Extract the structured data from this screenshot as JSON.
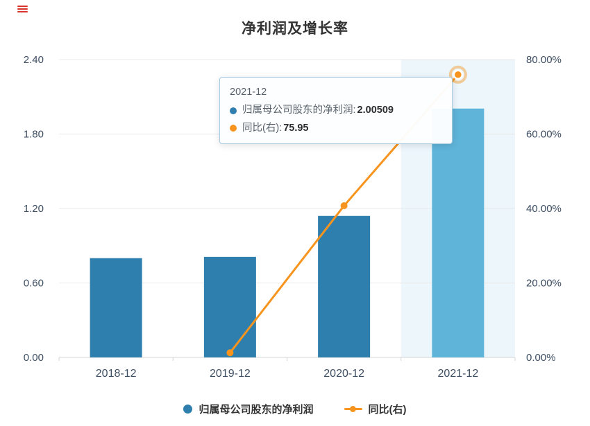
{
  "title": "净利润及增长率",
  "menu_icon_color": "#d9342b",
  "chart_data": {
    "type": "bar+line combo",
    "title": "净利润及增长率",
    "categories": [
      "2018-12",
      "2019-12",
      "2020-12",
      "2021-12"
    ],
    "series": [
      {
        "name": "归属母公司股东的净利润",
        "type": "bar",
        "axis": "left",
        "values": [
          0.8,
          0.81,
          1.14,
          2.00509
        ]
      },
      {
        "name": "同比(右)",
        "type": "line",
        "axis": "right",
        "values": [
          null,
          1.25,
          40.74,
          75.95
        ]
      }
    ],
    "left_axis": {
      "ticks": [
        "0.00",
        "0.60",
        "1.20",
        "1.80",
        "2.40"
      ],
      "min": 0,
      "max": 2.4
    },
    "right_axis": {
      "ticks": [
        "0.00%",
        "20.00%",
        "40.00%",
        "60.00%",
        "80.00%"
      ],
      "min": 0,
      "max": 80
    },
    "highlight_index": 3,
    "grid": true,
    "legend_position": "bottom",
    "colors": {
      "bar": "#2f7fae",
      "bar_highlight": "#5fb4d9",
      "band": "#ecf6fb",
      "line": "#f7941e",
      "grid": "#e8e8e8",
      "axis_line": "#d4d4d4",
      "axis_label": "#3d4e63",
      "tooltip_border": "#a6cbe2"
    }
  },
  "tooltip": {
    "header": "2021-12",
    "rows": [
      {
        "label": "归属母公司股东的净利润: ",
        "value": "2.00509",
        "marker": "bar"
      },
      {
        "label": "同比(右): ",
        "value": "75.95",
        "marker": "line"
      }
    ]
  },
  "legend": {
    "items": [
      {
        "label": "归属母公司股东的净利润"
      },
      {
        "label": "同比(右)"
      }
    ]
  }
}
